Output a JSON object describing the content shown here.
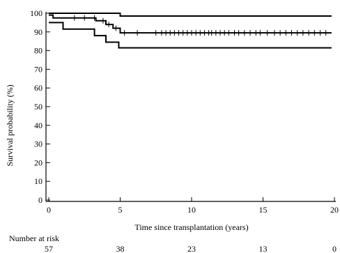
{
  "chart_data": {
    "type": "line",
    "subtype": "kaplan-meier-step",
    "title": "",
    "xlabel": "Time since transplantation (years)",
    "ylabel": "Survival probability (%)",
    "xlim": [
      0,
      20
    ],
    "ylim": [
      0,
      100
    ],
    "x_ticks": [
      0,
      5,
      10,
      15,
      20
    ],
    "y_ticks": [
      0,
      10,
      20,
      30,
      40,
      50,
      60,
      70,
      80,
      90,
      100
    ],
    "grid": false,
    "legend": "none",
    "series": [
      {
        "steps": [
          [
            0,
            100
          ],
          [
            5,
            100
          ],
          [
            5,
            98.5
          ],
          [
            19.8,
            98.5
          ]
        ],
        "censor_times": []
      },
      {
        "steps": [
          [
            0,
            99
          ],
          [
            0.3,
            99
          ],
          [
            0.3,
            97.5
          ],
          [
            3.3,
            97.5
          ],
          [
            3.3,
            96
          ],
          [
            4,
            96
          ],
          [
            4,
            94
          ],
          [
            4.5,
            94
          ],
          [
            4.5,
            92
          ],
          [
            5,
            92
          ],
          [
            5,
            89.5
          ],
          [
            19.8,
            89.5
          ]
        ],
        "censor_times": [
          1.8,
          2.5,
          3.2,
          3.8,
          4.2,
          4.7,
          5.3,
          6.2,
          7.5,
          7.9,
          8.2,
          8.5,
          8.8,
          9.1,
          9.4,
          9.7,
          10.0,
          10.3,
          10.6,
          10.9,
          11.2,
          11.4,
          11.7,
          12.0,
          12.3,
          12.6,
          13.0,
          13.3,
          13.7,
          14.1,
          14.5,
          14.8,
          15.3,
          15.8,
          16.2,
          16.6,
          17.0,
          17.4,
          17.8,
          18.2,
          18.6,
          19.0,
          19.4
        ]
      },
      {
        "steps": [
          [
            0,
            95
          ],
          [
            1,
            95
          ],
          [
            1,
            91.5
          ],
          [
            3.2,
            91.5
          ],
          [
            3.2,
            88
          ],
          [
            4,
            88
          ],
          [
            4,
            84.5
          ],
          [
            4.9,
            84.5
          ],
          [
            4.9,
            81.5
          ],
          [
            19.8,
            81.5
          ]
        ],
        "censor_times": []
      }
    ],
    "risk_table": {
      "label": "Number at risk",
      "times": [
        0,
        5,
        10,
        15,
        20
      ],
      "values": [
        "57",
        "38",
        "23",
        "13",
        "0"
      ]
    }
  }
}
